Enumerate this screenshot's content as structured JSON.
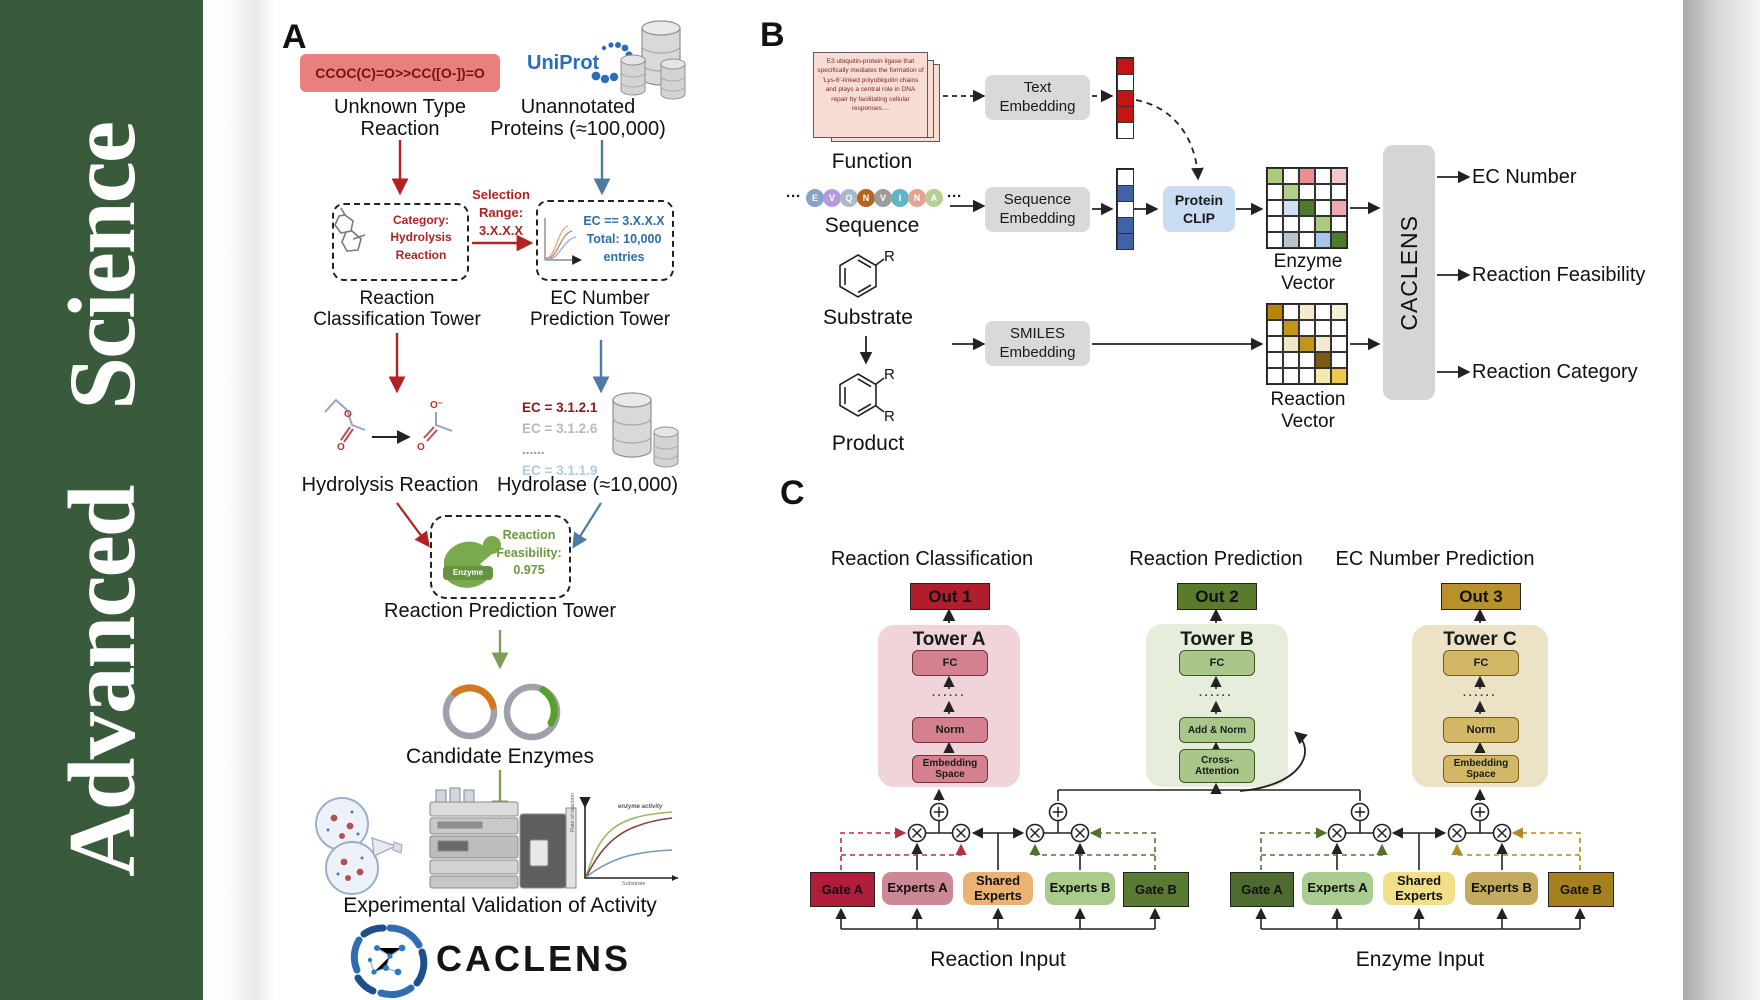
{
  "journal": {
    "title": "Advanced Science",
    "accent": "#3a5a3c"
  },
  "panelA": {
    "label": "A",
    "smiles": "CCOC(C)=O>>CC([O-])=O",
    "unknown_reaction": [
      "Unknown Type",
      "Reaction"
    ],
    "uniprot": "UniProt",
    "unannotated": [
      "Unannotated",
      "Proteins (≈100,000)"
    ],
    "classification_box": [
      "Category:",
      "Hydrolysis",
      "Reaction"
    ],
    "selection": [
      "Selection",
      "Range:",
      "3.X.X.X"
    ],
    "ec_box": [
      "EC == 3.X.X.X",
      "Total: 10,000",
      "entries"
    ],
    "tower1": [
      "Reaction",
      "Classification Tower"
    ],
    "tower2": [
      "EC Number",
      "Prediction Tower"
    ],
    "hydrolysis_label": "Hydrolysis Reaction",
    "ec_list": [
      {
        "text": "EC = 3.1.2.1",
        "color": "#8b1a1a"
      },
      {
        "text": "EC = 3.1.2.6",
        "color": "#b9b9b9"
      },
      {
        "text": "......",
        "color": "#999999"
      },
      {
        "text": "EC = 3.1.1.9",
        "color": "#aecbe3"
      }
    ],
    "hydrolase_label": "Hydrolase (≈10,000)",
    "enzyme_badge": "Enzyme",
    "feasibility": [
      "Reaction",
      "Feasibility:",
      "0.975"
    ],
    "tower3": "Reaction Prediction Tower",
    "candidate": "Candidate Enzymes",
    "validation": "Experimental Validation of Activity",
    "brand": "CACLENS",
    "graph": {
      "ylabel": "Rate of reaction",
      "xlabel": "Substrate",
      "annotation": "enzyme activity"
    }
  },
  "panelB": {
    "label": "B",
    "function_card": "E3 ubiquitin-protein ligase that specifically mediates the formation of 'Lys-6'-linked polyubiquitin chains and plays a central role in DNA repair by facilitating cellular responses....",
    "function_label": "Function",
    "dots": "···",
    "sequence": [
      {
        "letter": "E",
        "color": "#87a3c9"
      },
      {
        "letter": "V",
        "color": "#b79ade"
      },
      {
        "letter": "Q",
        "color": "#a9bac7"
      },
      {
        "letter": "N",
        "color": "#b5651d"
      },
      {
        "letter": "V",
        "color": "#9c9c9c"
      },
      {
        "letter": "I",
        "color": "#5fb4c5"
      },
      {
        "letter": "N",
        "color": "#e5a294"
      },
      {
        "letter": "A",
        "color": "#b7cf92"
      }
    ],
    "sequence_label": "Sequence",
    "substrate_label": "Substrate",
    "product_label": "Product",
    "r_label": "R",
    "text_embedding": [
      "Text",
      "Embedding"
    ],
    "sequence_embedding": [
      "Sequence",
      "Embedding"
    ],
    "smiles_embedding": [
      "SMILES",
      "Embedding"
    ],
    "protein_clip": [
      "Protein",
      "CLIP"
    ],
    "text_vector": [
      "#c41414",
      "#ffffff",
      "#c41414",
      "#c41414",
      "#ffffff"
    ],
    "seq_vector": [
      "#ffffff",
      "#3f63a8",
      "#ffffff",
      "#3f63a8",
      "#3f63a8"
    ],
    "enzyme_matrix": [
      [
        "#a9cc7c",
        "#ffffff",
        "#e98f8f",
        "#ffffff",
        "#f4c7cd"
      ],
      [
        "#ffffff",
        "#b2d08a",
        "#ffffff",
        "#ffffff",
        "#ffffff"
      ],
      [
        "#ffffff",
        "#cfe0f2",
        "#4e7a2c",
        "#ffffff",
        "#eeaab0"
      ],
      [
        "#ffffff",
        "#ffffff",
        "#ffffff",
        "#a9cc7c",
        "#ffffff"
      ],
      [
        "#ffffff",
        "#b9c4cf",
        "#ffffff",
        "#a5c6e8",
        "#4e7a2c"
      ]
    ],
    "reaction_matrix": [
      [
        "#b8860b",
        "#ffffff",
        "#f3ead0",
        "#ffffff",
        "#f7f0d8"
      ],
      [
        "#ffffff",
        "#c4941c",
        "#ffffff",
        "#ffffff",
        "#ffffff"
      ],
      [
        "#ffffff",
        "#f0e6c4",
        "#c4941c",
        "#f3ead0",
        "#ffffff"
      ],
      [
        "#ffffff",
        "#ffffff",
        "#ffffff",
        "#7a5c10",
        "#ffffff"
      ],
      [
        "#ffffff",
        "#ffffff",
        "#ffffff",
        "#f5e9b0",
        "#ecc94b"
      ]
    ],
    "enzyme_vector_label": "Enzyme Vector",
    "reaction_vector_label": "Reaction Vector",
    "caclens": "CACLENS",
    "outputs": [
      "EC Number",
      "Reaction Feasibility",
      "Reaction Category"
    ]
  },
  "panelC": {
    "label": "C",
    "headers": [
      "Reaction Classification",
      "Reaction Prediction",
      "EC Number Prediction"
    ],
    "dots": "······",
    "towers": [
      {
        "out": "Out 1",
        "title": "Tower A",
        "fc": "FC",
        "mid": "Norm",
        "base": "Embedding Space"
      },
      {
        "out": "Out 2",
        "title": "Tower B",
        "fc": "FC",
        "mid": "Add & Norm",
        "base": "Cross-Attention"
      },
      {
        "out": "Out 3",
        "title": "Tower C",
        "fc": "FC",
        "mid": "Norm",
        "base": "Embedding Space"
      }
    ],
    "reaction_group": {
      "boxes": [
        "Gate A",
        "Experts A",
        "Shared Experts",
        "Experts B",
        "Gate B"
      ],
      "label": "Reaction Input"
    },
    "enzyme_group": {
      "boxes": [
        "Gate A",
        "Experts A",
        "Shared Experts",
        "Experts B",
        "Gate B"
      ],
      "label": "Enzyme Input"
    }
  },
  "colors": {
    "journal_green": "#3a5a3c",
    "red_arrow": "#b22222",
    "blue_arrow": "#4e7ba6",
    "green_arrow": "#7f9f52",
    "uniprot_blue": "#2a6ebb",
    "out1": "#b01e2e",
    "out2": "#5a7a2e",
    "out3": "#b8912a",
    "gateA_reaction": "#b01e3c",
    "expertsA_reaction": "#cc8895",
    "shared_reaction": "#eab374",
    "expertsB_reaction": "#a9cc8b",
    "gateB_reaction": "#5a7a33",
    "gateA_enzyme": "#4d6b30",
    "expertsA_enzyme": "#a9cc90",
    "shared_enzyme": "#f2df8a",
    "expertsB_enzyme": "#c3aa5e",
    "gateB_enzyme": "#a5801f"
  }
}
